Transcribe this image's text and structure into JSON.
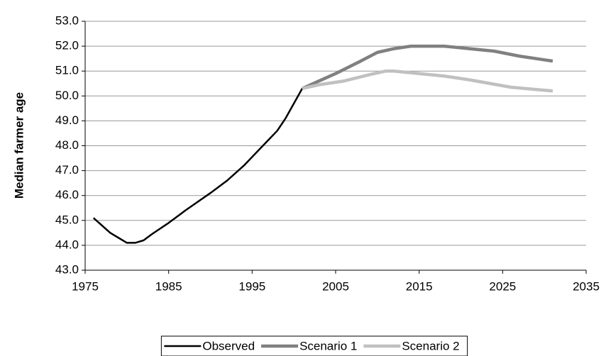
{
  "chart_data": {
    "type": "line",
    "y_label": "Median farmer age",
    "xlim": [
      1975,
      2035
    ],
    "xticks": [
      1975,
      1985,
      1995,
      2005,
      2015,
      2025,
      2035
    ],
    "ylim": [
      43,
      53
    ],
    "yticks": [
      {
        "value": 43,
        "label": "43.0"
      },
      {
        "value": 44,
        "label": "44.0"
      },
      {
        "value": 45,
        "label": "45.0"
      },
      {
        "value": 46,
        "label": "46.0"
      },
      {
        "value": 47,
        "label": "47.0"
      },
      {
        "value": 48,
        "label": "48.0"
      },
      {
        "value": 49,
        "label": "49.0"
      },
      {
        "value": 50,
        "label": "50.0"
      },
      {
        "value": 51,
        "label": "51.0"
      },
      {
        "value": 52,
        "label": "52.0"
      },
      {
        "value": 53,
        "label": "53.0"
      }
    ],
    "grid": true,
    "legend": "bottom",
    "series": [
      {
        "name": "Observed",
        "color": "#000000",
        "x": [
          1976,
          1977,
          1978,
          1979,
          1980,
          1981,
          1982,
          1983,
          1985,
          1987,
          1990,
          1992,
          1994,
          1996,
          1998,
          1999,
          2001
        ],
        "values": [
          45.1,
          44.8,
          44.5,
          44.3,
          44.1,
          44.1,
          44.2,
          44.45,
          44.9,
          45.4,
          46.1,
          46.6,
          47.2,
          47.9,
          48.6,
          49.1,
          50.3
        ]
      },
      {
        "name": "Scenario 1",
        "color": "#808080",
        "x": [
          2001,
          2005,
          2008,
          2010,
          2012,
          2014,
          2018,
          2021,
          2024,
          2027,
          2031
        ],
        "values": [
          50.3,
          50.9,
          51.4,
          51.75,
          51.9,
          52.0,
          52.0,
          51.9,
          51.8,
          51.6,
          51.4
        ]
      },
      {
        "name": "Scenario 2",
        "color": "#c0c0c0",
        "x": [
          2001,
          2003,
          2006,
          2009,
          2011,
          2012,
          2015,
          2018,
          2021,
          2026,
          2031
        ],
        "values": [
          50.3,
          50.45,
          50.6,
          50.85,
          51.0,
          51.0,
          50.9,
          50.8,
          50.65,
          50.35,
          50.2
        ]
      }
    ]
  }
}
